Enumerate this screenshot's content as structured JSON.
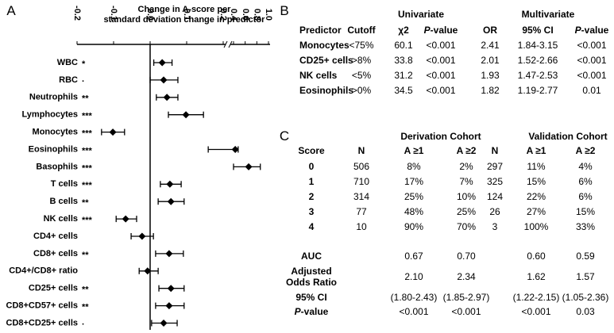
{
  "panel_labels": [
    "A",
    "B",
    "C"
  ],
  "chart_data": {
    "type": "forest",
    "x_label": [
      "Change in A-score per",
      "standard deviation change in predictor"
    ],
    "categories": [
      "WBC",
      "RBC",
      "Neutrophils",
      "Lymphocytes",
      "Monocytes",
      "Eosinophils",
      "Basophils",
      "T cells",
      "B cells",
      "NK cells",
      "CD4+ cells",
      "CD8+ cells",
      "CD4+/CD8+ ratio",
      "CD25+ cells",
      "CD8+CD57+ cells",
      "CD8+CD25+ cells"
    ],
    "significance": [
      "*",
      "·",
      "**",
      "***",
      "***",
      "***",
      "***",
      "***",
      "**",
      "***",
      null,
      "**",
      null,
      "**",
      "**",
      "·"
    ],
    "values": [
      0.033,
      0.037,
      0.046,
      0.098,
      -0.102,
      0.43,
      0.66,
      0.054,
      0.057,
      -0.067,
      -0.022,
      0.052,
      -0.007,
      0.057,
      0.052,
      0.037
    ],
    "ci_low": [
      0.01,
      0.0,
      0.017,
      0.05,
      -0.133,
      0.159,
      0.4,
      0.028,
      0.022,
      -0.093,
      -0.052,
      0.015,
      -0.03,
      0.024,
      0.015,
      0.004
    ],
    "ci_high": [
      0.06,
      0.076,
      0.076,
      0.146,
      -0.07,
      0.48,
      0.86,
      0.085,
      0.093,
      -0.037,
      0.009,
      0.091,
      0.022,
      0.093,
      0.093,
      0.074
    ],
    "xlim": [
      -0.2,
      1.0
    ],
    "x_break": [
      0.2,
      0.4
    ],
    "xticks": [
      -0.2,
      -0.1,
      {
        "value": 0,
        "label": "0.0"
      },
      0.1,
      0.2,
      0.4,
      0.6,
      0.8,
      {
        "value": 1,
        "label": "1.0"
      }
    ],
    "color": "#000000"
  },
  "table_b": {
    "group_headers": [
      "Univariate",
      "Multivariate"
    ],
    "columns": [
      "Predictor",
      "Cutoff",
      "χ2",
      "P-value",
      "OR",
      "95% CI",
      "P-value"
    ],
    "rows": [
      [
        "Monocytes",
        "<75%",
        "60.1",
        "<0.001",
        "2.41",
        "1.84-3.15",
        "<0.001"
      ],
      [
        "CD25+ cells",
        ">8%",
        "33.8",
        "<0.001",
        "2.01",
        "1.52-2.66",
        "<0.001"
      ],
      [
        "NK cells",
        "<5%",
        "31.2",
        "<0.001",
        "1.93",
        "1.47-2.53",
        "<0.001"
      ],
      [
        "Eosinophils",
        ">0%",
        "34.5",
        "<0.001",
        "1.82",
        "1.19-2.77",
        "0.01"
      ]
    ]
  },
  "table_c": {
    "group_headers": [
      "Derivation Cohort",
      "Validation Cohort"
    ],
    "columns": [
      "Score",
      "N",
      "A ≥1",
      "A ≥2",
      "N",
      "A ≥1",
      "A ≥2"
    ],
    "rows": [
      [
        "0",
        "506",
        "8%",
        "2%",
        "297",
        "11%",
        "4%"
      ],
      [
        "1",
        "710",
        "17%",
        "7%",
        "325",
        "15%",
        "6%"
      ],
      [
        "2",
        "314",
        "25%",
        "10%",
        "124",
        "22%",
        "6%"
      ],
      [
        "3",
        "77",
        "48%",
        "25%",
        "26",
        "27%",
        "15%"
      ],
      [
        "4",
        "10",
        "90%",
        "70%",
        "3",
        "100%",
        "33%"
      ]
    ],
    "summary": [
      [
        "AUC",
        "0.67",
        "0.70",
        "0.60",
        "0.59"
      ],
      [
        "Adjusted Odds Ratio",
        "2.10",
        "2.34",
        "1.62",
        "1.57"
      ],
      [
        "95% CI",
        "(1.80-2.43)",
        "(1.85-2.97)",
        "(1.22-2.15)",
        "(1.05-2.36)"
      ],
      [
        "P-value",
        "<0.001",
        "<0.001",
        "<0.001",
        "0.03"
      ]
    ]
  }
}
